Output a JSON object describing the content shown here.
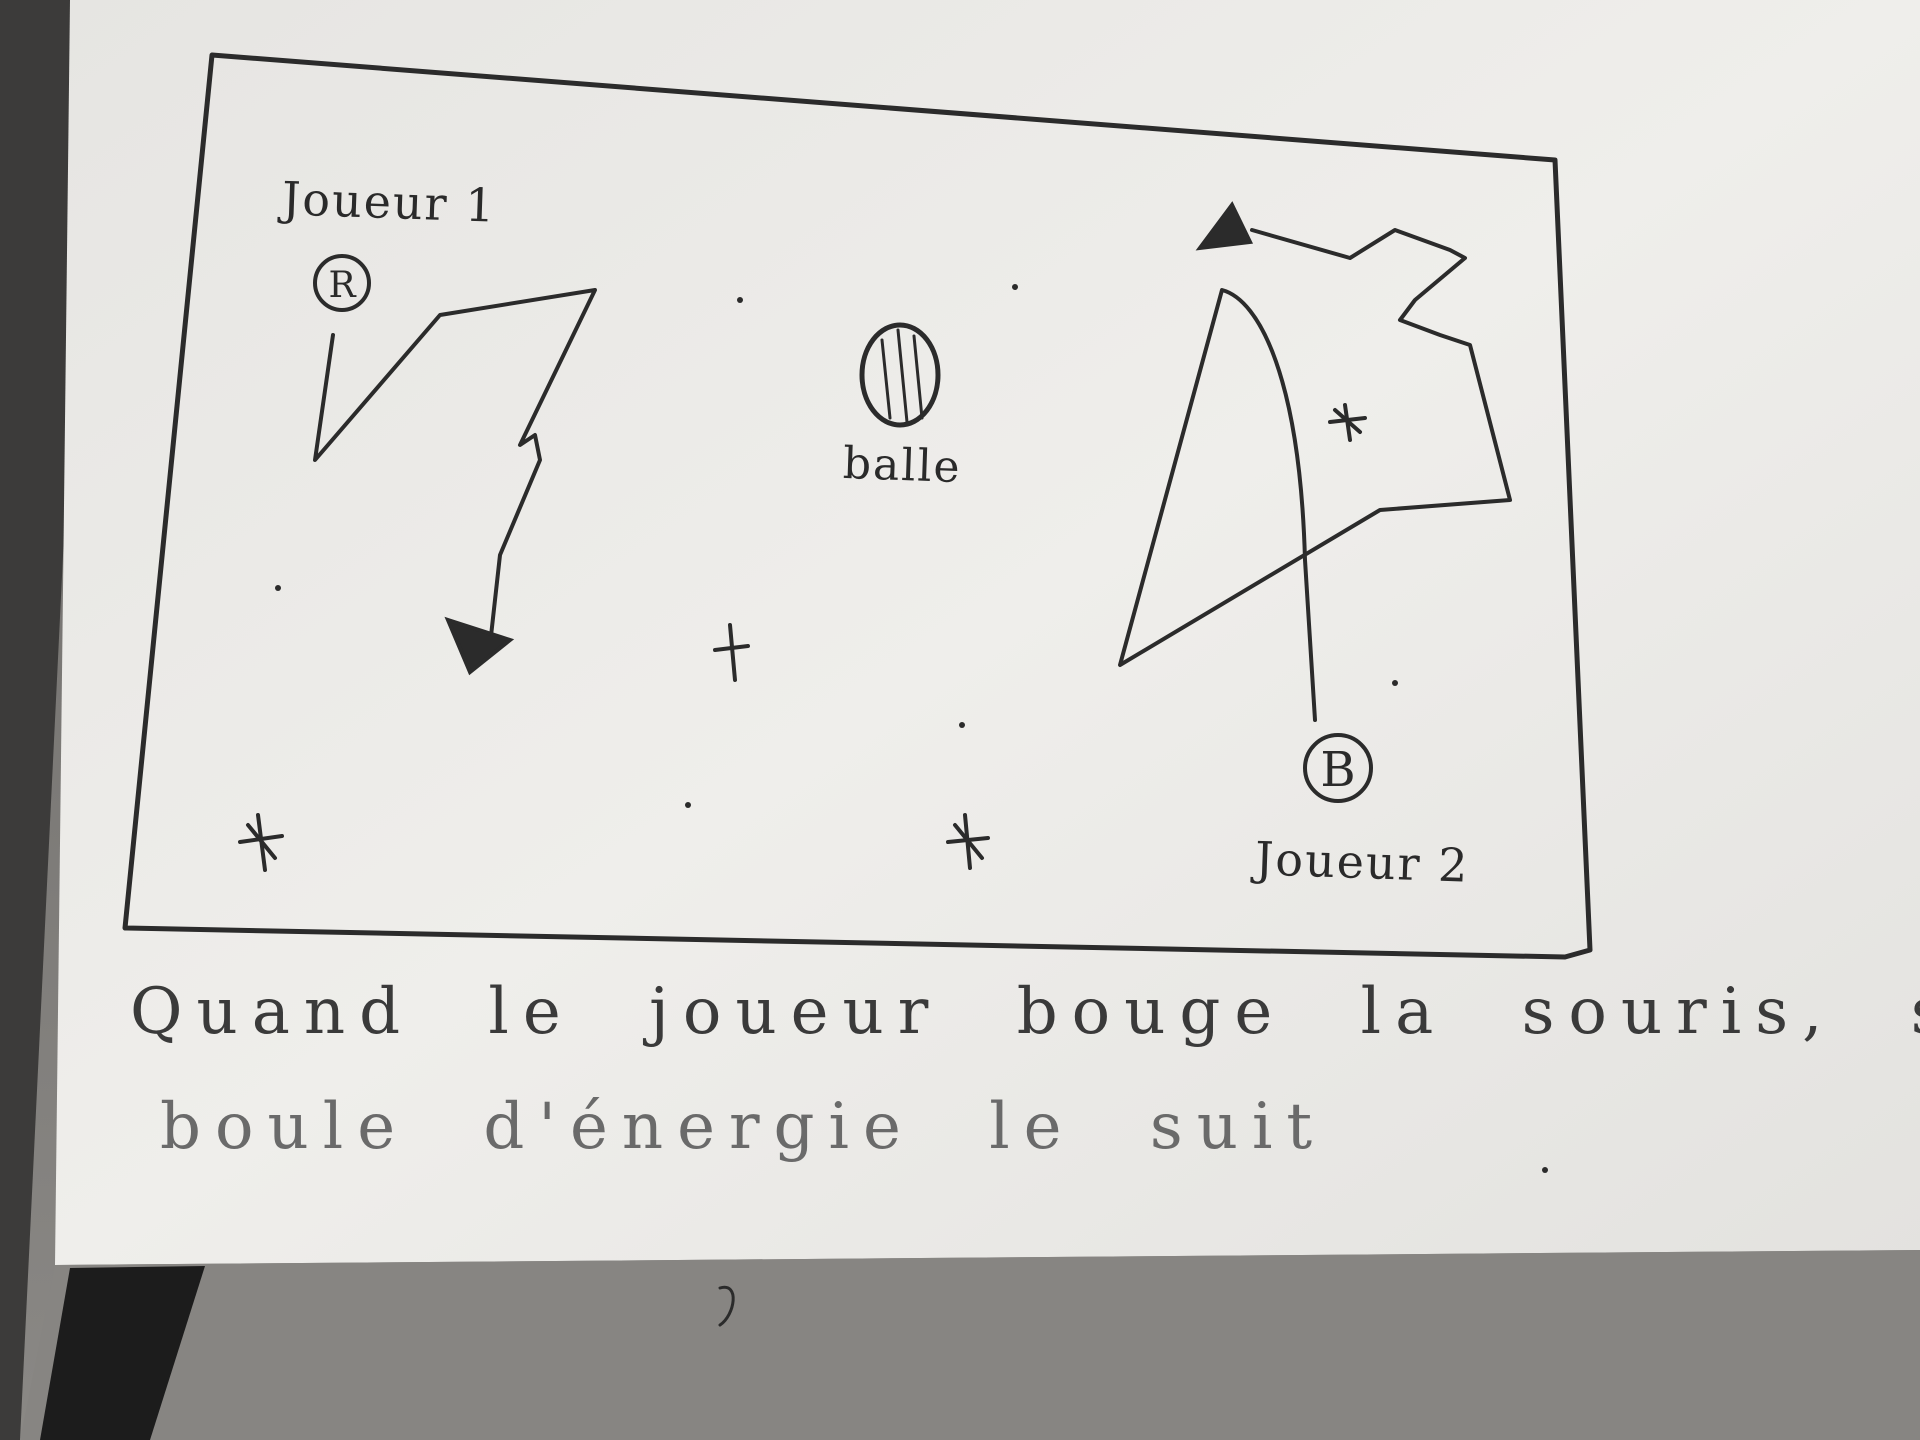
{
  "sketch": {
    "player1_label": "Joueur 1",
    "player2_label": "Joueur 2",
    "ball_label": "balle",
    "player1_marker": "R",
    "player2_marker": "B"
  },
  "caption": {
    "line1": "Quand le joueur bouge la souris, sa",
    "line2": "boule d'énergie le suit"
  },
  "colors": {
    "paper": "#ecebe8",
    "pencil": "#2b2b2b",
    "desk": "#7a7875"
  }
}
